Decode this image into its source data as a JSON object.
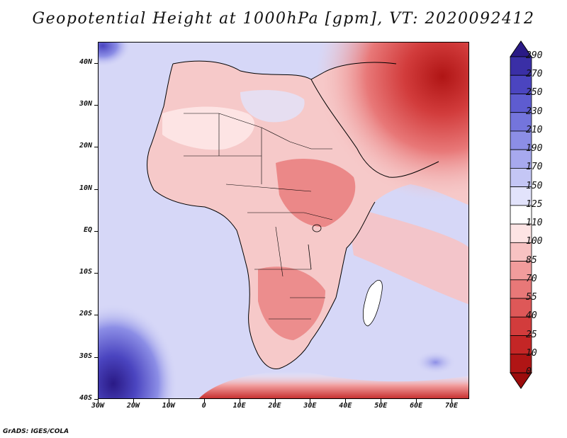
{
  "title": "Geopotential Height at 1000hPa [gpm], VT: 2020092412",
  "footer": "GrADS: IGES/COLA",
  "map": {
    "lon_range": [
      -30,
      75
    ],
    "lat_range": [
      -40,
      45
    ],
    "lat_labels": [
      "40N",
      "30N",
      "20N",
      "10N",
      "EQ",
      "10S",
      "20S",
      "30S",
      "40S"
    ],
    "lat_values": [
      40,
      30,
      20,
      10,
      0,
      -10,
      -20,
      -30,
      -40
    ],
    "lon_labels": [
      "30W",
      "20W",
      "10W",
      "0",
      "10E",
      "20E",
      "30E",
      "40E",
      "50E",
      "60E",
      "70E"
    ],
    "lon_values": [
      -30,
      -20,
      -10,
      0,
      10,
      20,
      30,
      40,
      50,
      60,
      70
    ]
  },
  "colorbar": {
    "labels": [
      "290",
      "270",
      "250",
      "230",
      "210",
      "190",
      "170",
      "150",
      "125",
      "110",
      "100",
      "85",
      "70",
      "55",
      "40",
      "25",
      "10",
      "0"
    ],
    "colors": [
      "#2a1a86",
      "#3a2fa6",
      "#4b45c0",
      "#5e5cd0",
      "#7475dc",
      "#8c8ee6",
      "#a7a9ee",
      "#c4c6f5",
      "#e2e3fb",
      "#ffffff",
      "#fde4e4",
      "#f8c2c2",
      "#f19c9c",
      "#e87878",
      "#de5858",
      "#d23c3c",
      "#c42626",
      "#b01515",
      "#9c0c0c"
    ]
  },
  "colors": {
    "ocean": "#d6d7f7",
    "land_low": "#f6c9c9",
    "land_high": "#d84848",
    "coast": "#000000"
  }
}
